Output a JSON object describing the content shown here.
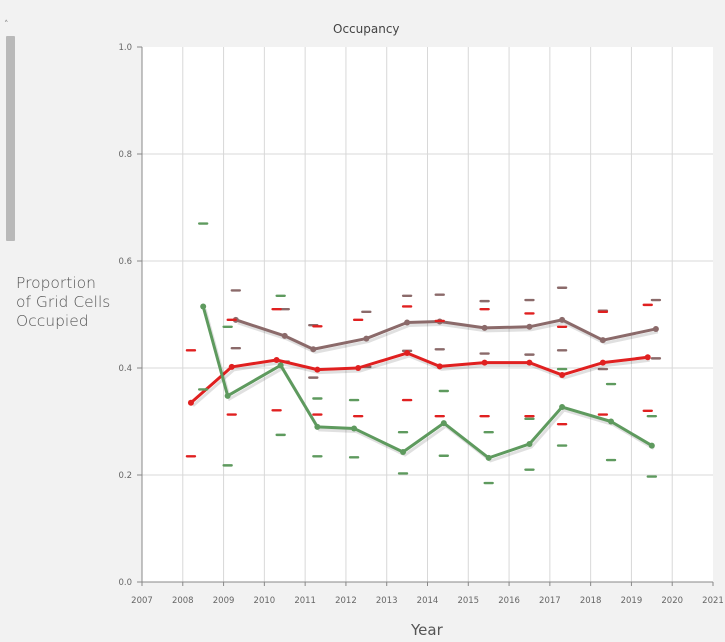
{
  "chart_data": {
    "type": "line",
    "title": "Occupancy",
    "xlabel": "Year",
    "ylabel": "Proportion of Grid Cells Occupied",
    "xlim": [
      2007,
      2021
    ],
    "ylim": [
      0.0,
      1.0
    ],
    "x_ticks": [
      "2007",
      "2008",
      "2009",
      "2010",
      "2011",
      "2012",
      "2013",
      "2014",
      "2015",
      "2016",
      "2017",
      "2018",
      "2019",
      "2020",
      "2021"
    ],
    "y_ticks": [
      "0.0",
      "0.2",
      "0.4",
      "0.6",
      "0.8",
      "1.0"
    ],
    "grid": true,
    "legend": "none",
    "series": [
      {
        "color": "#8b6a6a",
        "x": [
          2009.3,
          2010.5,
          2011.2,
          2012.5,
          2013.5,
          2014.3,
          2015.4,
          2016.5,
          2017.3,
          2018.3,
          2019.6
        ],
        "y": [
          0.49,
          0.46,
          0.435,
          0.455,
          0.485,
          0.487,
          0.475,
          0.477,
          0.49,
          0.452,
          0.473
        ],
        "upper": [
          0.545,
          0.51,
          0.48,
          0.505,
          0.535,
          0.537,
          0.525,
          0.527,
          0.55,
          0.507,
          0.527
        ],
        "lower": [
          0.437,
          0.412,
          0.382,
          0.402,
          0.432,
          0.435,
          0.427,
          0.425,
          0.433,
          0.398,
          0.418
        ]
      },
      {
        "color": "#e02020",
        "x": [
          2008.2,
          2009.2,
          2010.3,
          2011.3,
          2012.3,
          2013.5,
          2014.3,
          2015.4,
          2016.5,
          2017.3,
          2018.3,
          2019.4
        ],
        "y": [
          0.335,
          0.402,
          0.415,
          0.397,
          0.4,
          0.428,
          0.403,
          0.41,
          0.41,
          0.387,
          0.41,
          0.42
        ],
        "upper": [
          0.433,
          0.49,
          0.51,
          0.478,
          0.49,
          0.515,
          0.488,
          0.51,
          0.502,
          0.477,
          0.505,
          0.518
        ],
        "lower": [
          0.235,
          0.313,
          0.321,
          0.313,
          0.31,
          0.34,
          0.31,
          0.31,
          0.31,
          0.295,
          0.313,
          0.32
        ]
      },
      {
        "color": "#5e9a5e",
        "x": [
          2008.5,
          2009.1,
          2010.4,
          2011.3,
          2012.2,
          2013.4,
          2014.4,
          2015.5,
          2016.5,
          2017.3,
          2018.5,
          2019.5
        ],
        "y": [
          0.515,
          0.348,
          0.405,
          0.29,
          0.287,
          0.243,
          0.297,
          0.232,
          0.258,
          0.327,
          0.3,
          0.255
        ],
        "upper": [
          0.67,
          0.477,
          0.535,
          0.343,
          0.34,
          0.28,
          0.357,
          0.28,
          0.305,
          0.398,
          0.37,
          0.31
        ],
        "lower": [
          0.36,
          0.218,
          0.275,
          0.235,
          0.233,
          0.203,
          0.236,
          0.185,
          0.21,
          0.255,
          0.228,
          0.197
        ]
      }
    ]
  }
}
